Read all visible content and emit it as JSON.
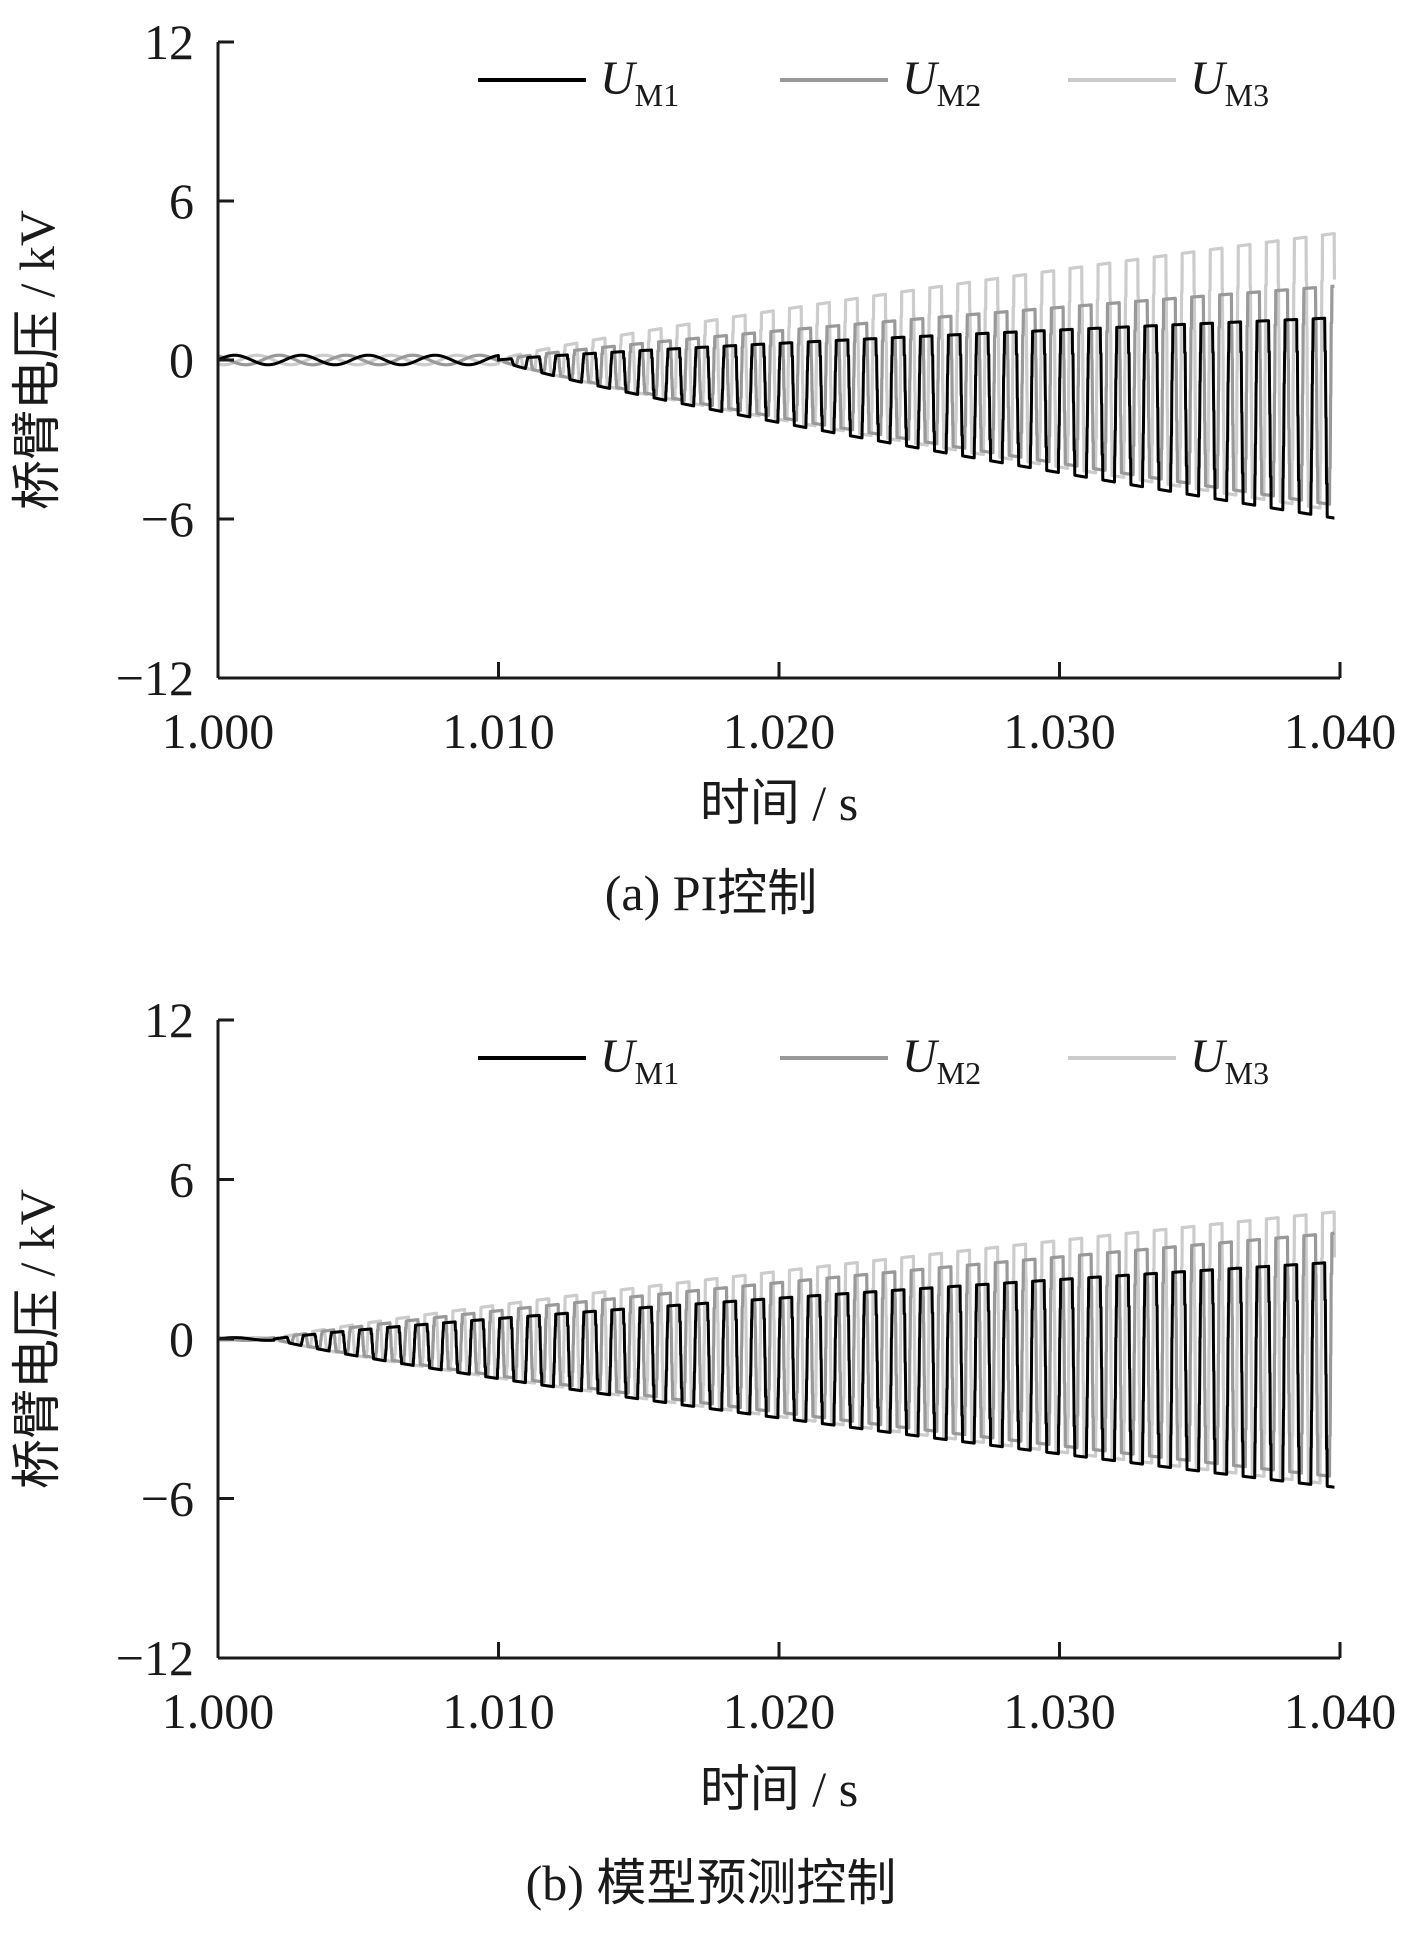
{
  "chart_data": [
    {
      "type": "line",
      "caption": "(a)  PI控制",
      "xlabel": "时间 / s",
      "ylabel": "桥臂电压 / kV",
      "xlim": [
        1.0,
        1.04
      ],
      "ylim": [
        -12,
        12
      ],
      "x_ticks": [
        "1.000",
        "1.010",
        "1.020",
        "1.030",
        "1.040"
      ],
      "y_ticks": [
        "12",
        "6",
        "0",
        "−6",
        "−12"
      ],
      "legend_position": "top",
      "series": [
        {
          "name": "U",
          "sub": "M1",
          "color": "#000000"
        },
        {
          "name": "U",
          "sub": "M2",
          "color": "#999999"
        },
        {
          "name": "U",
          "sub": "M3",
          "color": "#cccccc"
        }
      ],
      "envelope": {
        "onset": 1.01,
        "end_max": [
          1.6,
          2.8,
          4.8
        ],
        "end_min": [
          -6.0,
          -5.5,
          -5.7
        ]
      }
    },
    {
      "type": "line",
      "caption": "(b)  模型预测控制",
      "xlabel": "时间 / s",
      "ylabel": "桥臂电压 / kV",
      "xlim": [
        1.0,
        1.04
      ],
      "ylim": [
        -12,
        12
      ],
      "x_ticks": [
        "1.000",
        "1.010",
        "1.020",
        "1.030",
        "1.040"
      ],
      "y_ticks": [
        "12",
        "6",
        "0",
        "−6",
        "−12"
      ],
      "legend_position": "top",
      "series": [
        {
          "name": "U",
          "sub": "M1",
          "color": "#000000"
        },
        {
          "name": "U",
          "sub": "M2",
          "color": "#999999"
        },
        {
          "name": "U",
          "sub": "M3",
          "color": "#cccccc"
        }
      ],
      "envelope": {
        "onset": 1.002,
        "end_max": [
          2.9,
          4.0,
          4.8
        ],
        "end_min": [
          -5.6,
          -5.2,
          -5.5
        ]
      }
    }
  ]
}
